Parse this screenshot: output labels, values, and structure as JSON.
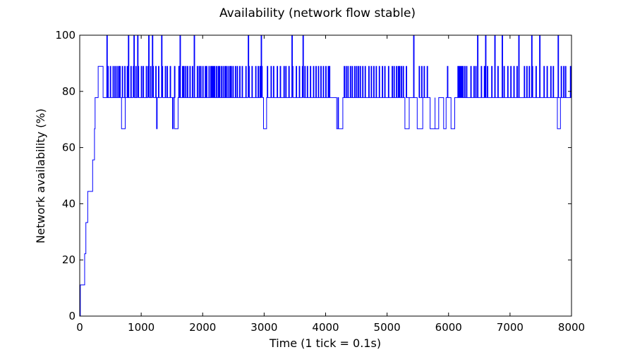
{
  "chart_data": {
    "type": "line",
    "title": "Availability (network flow stable)",
    "xlabel": "Time (1 tick = 0.1s)",
    "ylabel": "Network availability (%)",
    "xlim": [
      0,
      8000
    ],
    "ylim": [
      0,
      100
    ],
    "xticks": [
      0,
      1000,
      2000,
      3000,
      4000,
      5000,
      6000,
      7000,
      8000
    ],
    "yticks": [
      0,
      20,
      40,
      60,
      80,
      100
    ],
    "grid": false,
    "series": [
      {
        "name": "availability",
        "color": "#0000ff",
        "ramp": [
          [
            0,
            0
          ],
          [
            10,
            11.1
          ],
          [
            80,
            22.2
          ],
          [
            100,
            33.3
          ],
          [
            130,
            44.4
          ],
          [
            210,
            55.6
          ],
          [
            240,
            66.7
          ],
          [
            250,
            77.8
          ],
          [
            300,
            88.9
          ],
          [
            380,
            77.8
          ]
        ],
        "baseline": 77.8,
        "baseline_start": 380,
        "baseline_end": 8000,
        "spikes_to_88_9": [
          455,
          495,
          540,
          570,
          600,
          630,
          650,
          690,
          730,
          770,
          830,
          870,
          910,
          950,
          1000,
          1030,
          1080,
          1110,
          1150,
          1190,
          1235,
          1280,
          1340,
          1390,
          1420,
          1470,
          1540,
          1610,
          1670,
          1690,
          1720,
          1750,
          1790,
          1830,
          1910,
          1940,
          1965,
          2000,
          2040,
          2060,
          2100,
          2130,
          2150,
          2170,
          2190,
          2220,
          2250,
          2270,
          2300,
          2330,
          2360,
          2380,
          2410,
          2440,
          2460,
          2490,
          2530,
          2560,
          2600,
          2640,
          2700,
          2750,
          2800,
          2860,
          2900,
          2930,
          2960,
          3050,
          3110,
          3150,
          3210,
          3260,
          3320,
          3350,
          3400,
          3460,
          3520,
          3570,
          3620,
          3660,
          3700,
          3750,
          3800,
          3840,
          3880,
          3920,
          3960,
          4000,
          4040,
          4060,
          4300,
          4330,
          4360,
          4400,
          4430,
          4470,
          4500,
          4530,
          4560,
          4600,
          4640,
          4700,
          4740,
          4780,
          4820,
          4870,
          4920,
          4960,
          5020,
          5080,
          5110,
          5150,
          5180,
          5200,
          5230,
          5260,
          5310,
          5520,
          5560,
          5600,
          5650,
          5980,
          6150,
          6170,
          6190,
          6210,
          6230,
          6260,
          6290,
          6360,
          6410,
          6440,
          6530,
          6580,
          6630,
          6700,
          6800,
          6900,
          6960,
          7010,
          7060,
          7110,
          7230,
          7270,
          7310,
          7360,
          7420,
          7550,
          7600,
          7660,
          7700,
          7830,
          7870,
          7900,
          7980
        ],
        "spikes_to_100": [
          440,
          790,
          880,
          940,
          1120,
          1180,
          1330,
          1630,
          1860,
          2740,
          2950,
          3450,
          3630,
          5430,
          6470,
          6600,
          6750,
          6870,
          7140,
          7350,
          7480,
          7780
        ],
        "dips_to_66_7": [
          [
            680,
            740
          ],
          [
            1250,
            1260
          ],
          [
            1510,
            1520
          ],
          [
            1540,
            1600
          ],
          [
            2990,
            3040
          ],
          [
            4180,
            4200
          ],
          [
            4210,
            4280
          ],
          [
            5290,
            5360
          ],
          [
            5490,
            5580
          ],
          [
            5700,
            5780
          ],
          [
            5780,
            5840
          ],
          [
            5920,
            5960
          ],
          [
            6040,
            6100
          ],
          [
            7770,
            7820
          ]
        ]
      }
    ]
  }
}
